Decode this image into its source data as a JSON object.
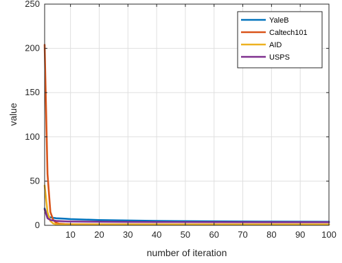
{
  "chart_data": {
    "type": "line",
    "title": "",
    "xlabel": "number of iteration",
    "ylabel": "value",
    "xlim": [
      1,
      100
    ],
    "ylim": [
      0,
      250
    ],
    "xticks": [
      10,
      20,
      30,
      40,
      50,
      60,
      70,
      80,
      90,
      100
    ],
    "yticks": [
      0,
      50,
      100,
      150,
      200,
      250
    ],
    "grid": true,
    "legend_position": "top-right",
    "series": [
      {
        "name": "YaleB",
        "color": "#0072BD",
        "points": [
          [
            1,
            19
          ],
          [
            2,
            10
          ],
          [
            3,
            9
          ],
          [
            4,
            8.5
          ],
          [
            5,
            8
          ],
          [
            8,
            7.5
          ],
          [
            10,
            7
          ],
          [
            20,
            6
          ],
          [
            30,
            5.5
          ],
          [
            40,
            5
          ],
          [
            60,
            4.5
          ],
          [
            80,
            4.2
          ],
          [
            100,
            4
          ]
        ]
      },
      {
        "name": "Caltech101",
        "color": "#D95319",
        "points": [
          [
            1,
            204
          ],
          [
            2,
            58
          ],
          [
            3,
            15
          ],
          [
            4,
            6
          ],
          [
            5,
            3
          ],
          [
            6,
            2
          ],
          [
            8,
            1.5
          ],
          [
            10,
            1.3
          ],
          [
            20,
            1.1
          ],
          [
            40,
            1
          ],
          [
            60,
            1
          ],
          [
            80,
            1
          ],
          [
            100,
            1
          ]
        ]
      },
      {
        "name": "AID",
        "color": "#EDB120",
        "points": [
          [
            1,
            45
          ],
          [
            2,
            15
          ],
          [
            3,
            5
          ],
          [
            4,
            2
          ],
          [
            5,
            1.2
          ],
          [
            6,
            1
          ],
          [
            8,
            1
          ],
          [
            10,
            1
          ],
          [
            20,
            1
          ],
          [
            40,
            1
          ],
          [
            60,
            1
          ],
          [
            80,
            1
          ],
          [
            100,
            1
          ]
        ]
      },
      {
        "name": "USPS",
        "color": "#7E2F8E",
        "points": [
          [
            1,
            18
          ],
          [
            2,
            8
          ],
          [
            3,
            6
          ],
          [
            4,
            5.5
          ],
          [
            5,
            5
          ],
          [
            8,
            4.5
          ],
          [
            10,
            4.3
          ],
          [
            20,
            4
          ],
          [
            30,
            3.8
          ],
          [
            40,
            3.7
          ],
          [
            60,
            3.6
          ],
          [
            80,
            3.5
          ],
          [
            100,
            3.5
          ]
        ]
      }
    ]
  }
}
